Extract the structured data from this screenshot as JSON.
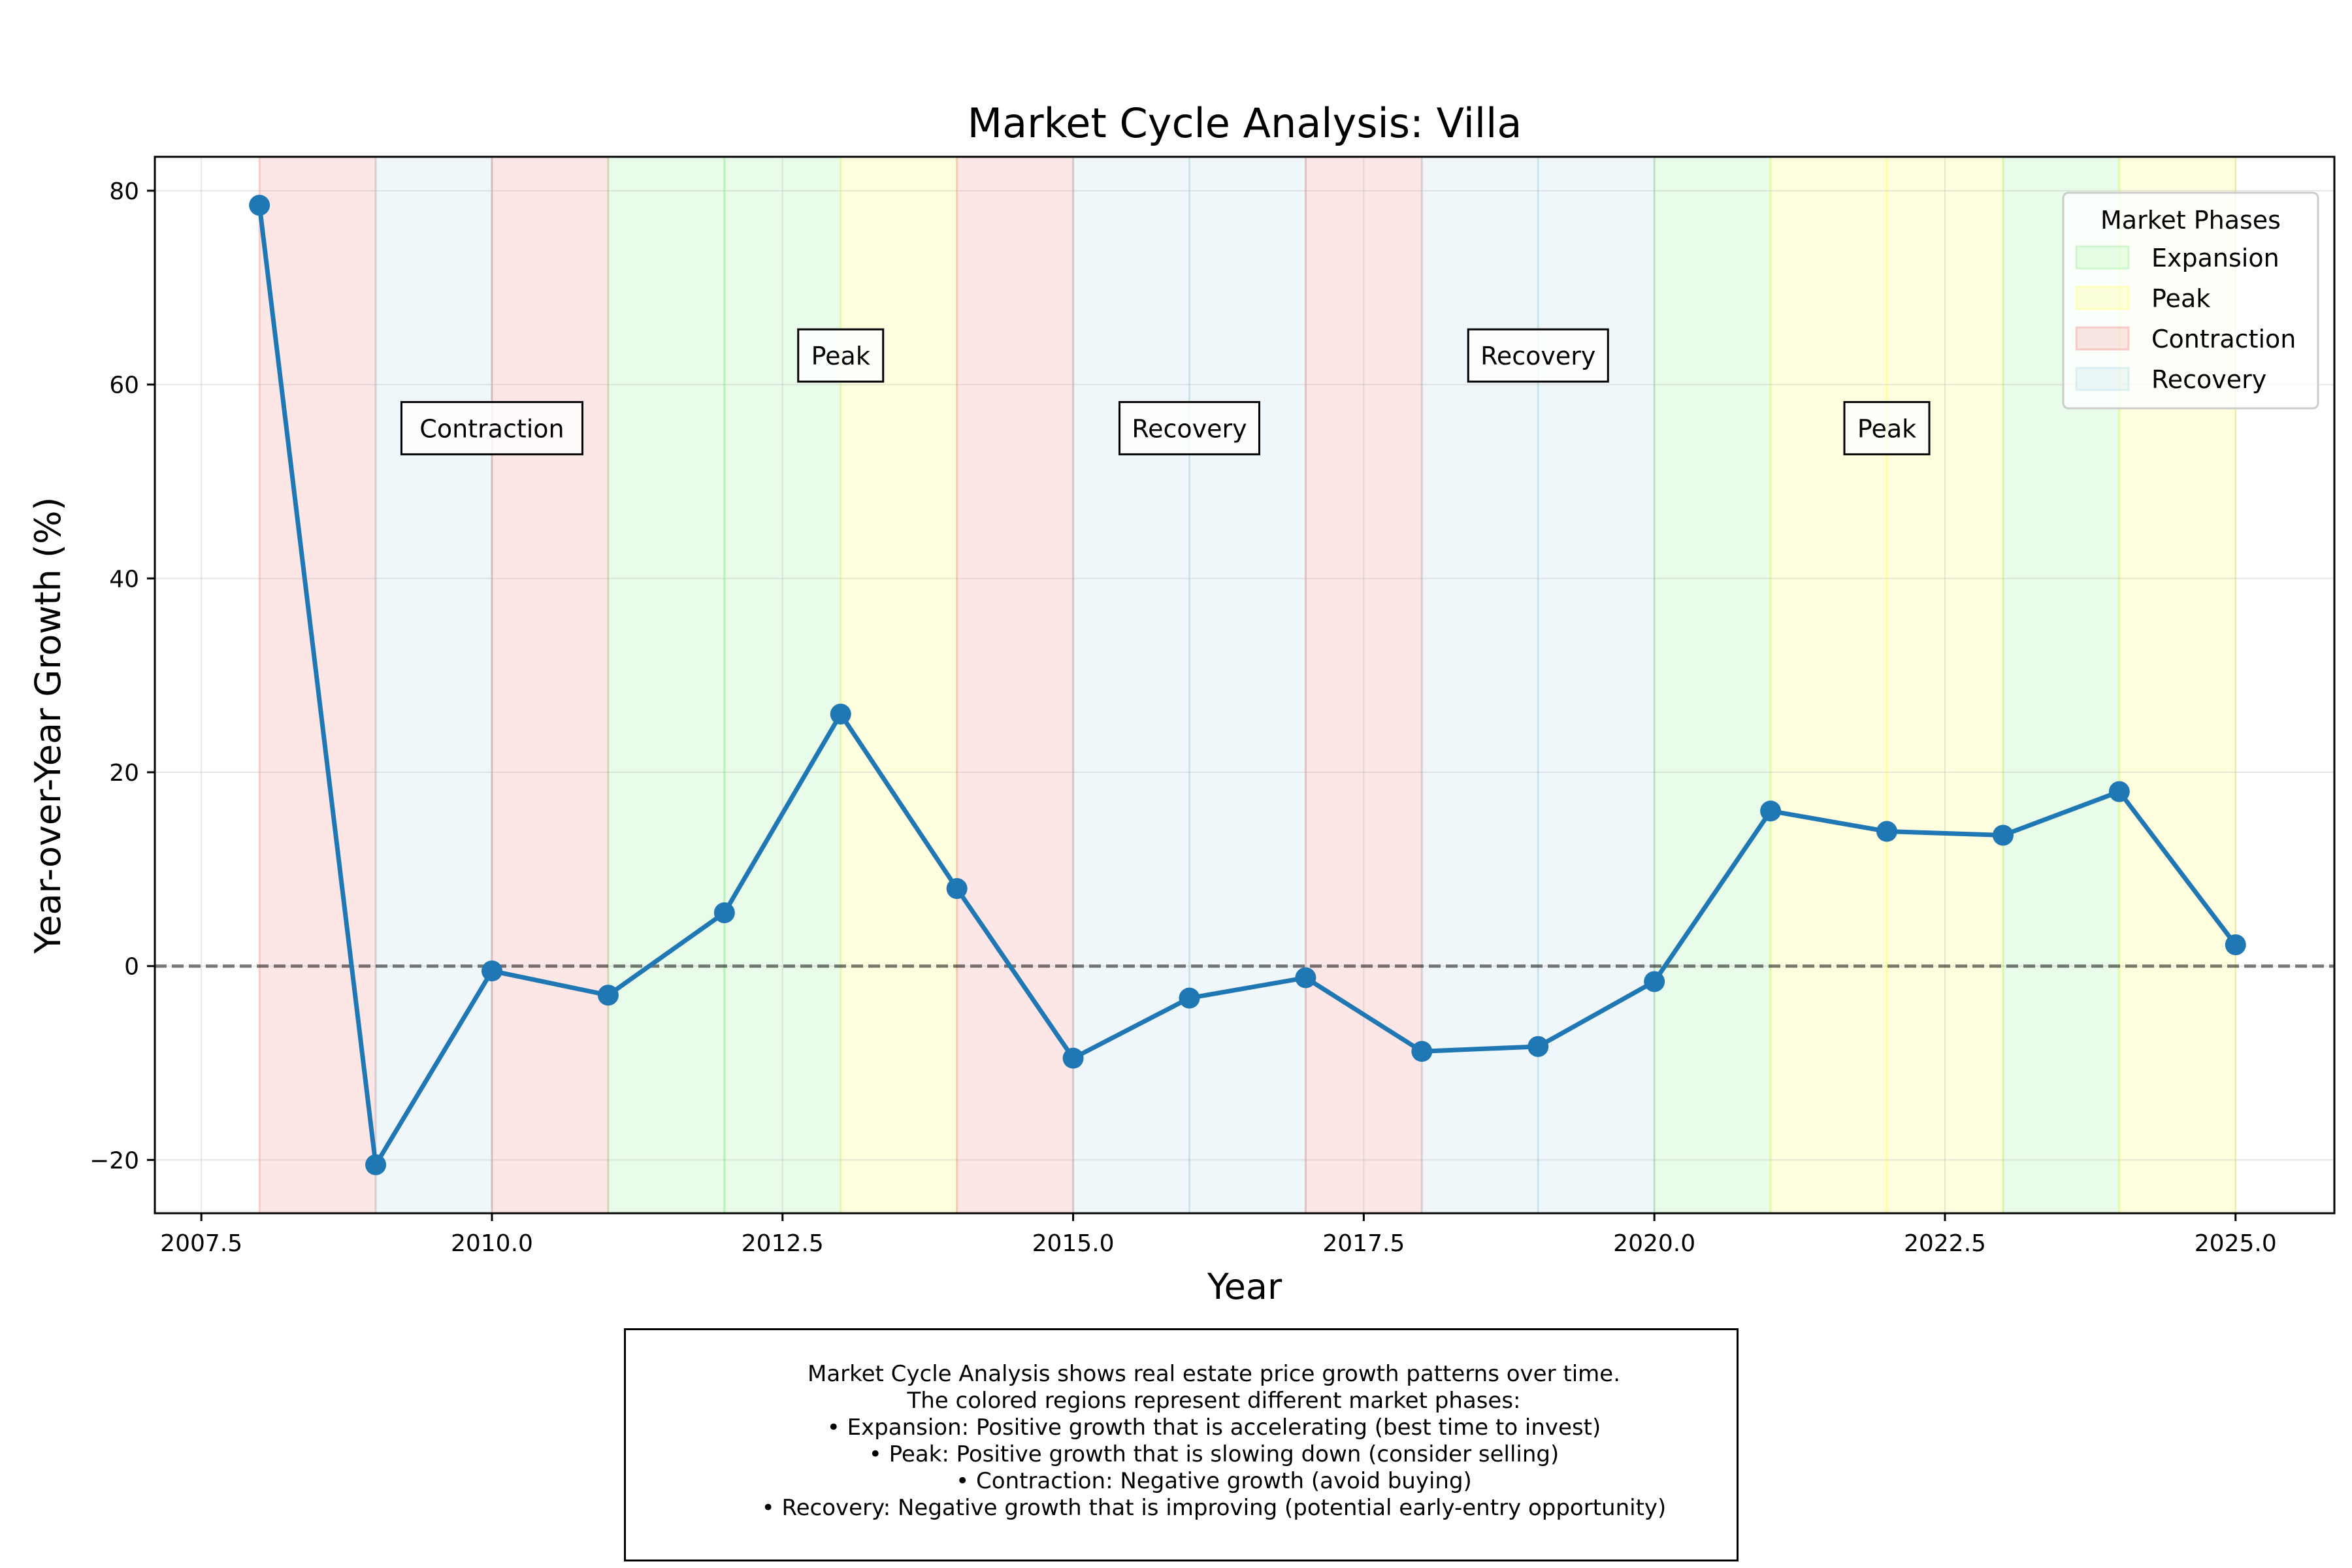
{
  "chart_data": {
    "type": "line",
    "title": "Market Cycle Analysis: Villa",
    "xlabel": "Year",
    "ylabel": "Year-over-Year Growth (%)",
    "xlim": [
      2007.1,
      2025.85
    ],
    "ylim": [
      -25.5,
      83.5
    ],
    "xticks": [
      2007.5,
      2010.0,
      2012.5,
      2015.0,
      2017.5,
      2020.0,
      2022.5,
      2025.0
    ],
    "xtick_labels": [
      "2007.5",
      "2010.0",
      "2012.5",
      "2015.0",
      "2017.5",
      "2020.0",
      "2022.5",
      "2025.0"
    ],
    "yticks": [
      -20,
      0,
      20,
      40,
      60,
      80
    ],
    "ytick_labels": [
      "−20",
      "0",
      "20",
      "40",
      "60",
      "80"
    ],
    "grid": true,
    "reference_line": 0,
    "series": [
      {
        "x": [
          2008,
          2009,
          2010,
          2011,
          2012,
          2013,
          2014,
          2015,
          2016,
          2017,
          2018,
          2019,
          2020,
          2021,
          2022,
          2023,
          2024,
          2025
        ],
        "values": [
          78.5,
          -20.5,
          -0.5,
          -3.0,
          5.5,
          26.0,
          8.0,
          -9.5,
          -3.3,
          -1.2,
          -8.8,
          -8.3,
          -1.6,
          16.0,
          13.9,
          13.5,
          18.0,
          2.2
        ],
        "color": "#1f77b4"
      }
    ],
    "phase_colors": {
      "Expansion": "#90ee90",
      "Peak": "#ffff66",
      "Contraction": "#f08080",
      "Recovery": "#add8e6"
    },
    "phases": [
      {
        "start": 2008,
        "end": 2009,
        "phase": "Contraction"
      },
      {
        "start": 2009,
        "end": 2010,
        "phase": "Recovery"
      },
      {
        "start": 2010,
        "end": 2011,
        "phase": "Contraction"
      },
      {
        "start": 2011,
        "end": 2012,
        "phase": "Expansion"
      },
      {
        "start": 2012,
        "end": 2013,
        "phase": "Expansion"
      },
      {
        "start": 2013,
        "end": 2014,
        "phase": "Peak"
      },
      {
        "start": 2014,
        "end": 2015,
        "phase": "Contraction"
      },
      {
        "start": 2015,
        "end": 2016,
        "phase": "Recovery"
      },
      {
        "start": 2016,
        "end": 2017,
        "phase": "Recovery"
      },
      {
        "start": 2017,
        "end": 2018,
        "phase": "Contraction"
      },
      {
        "start": 2018,
        "end": 2019,
        "phase": "Recovery"
      },
      {
        "start": 2019,
        "end": 2020,
        "phase": "Recovery"
      },
      {
        "start": 2020,
        "end": 2021,
        "phase": "Expansion"
      },
      {
        "start": 2021,
        "end": 2022,
        "phase": "Peak"
      },
      {
        "start": 2022,
        "end": 2023,
        "phase": "Peak"
      },
      {
        "start": 2023,
        "end": 2024,
        "phase": "Expansion"
      },
      {
        "start": 2024,
        "end": 2025,
        "phase": "Peak"
      }
    ],
    "annotations": [
      {
        "text": "Contraction",
        "x": 2010.0,
        "y": 55.5
      },
      {
        "text": "Peak",
        "x": 2013.0,
        "y": 63.0
      },
      {
        "text": "Recovery",
        "x": 2016.0,
        "y": 55.5
      },
      {
        "text": "Recovery",
        "x": 2019.0,
        "y": 63.0
      },
      {
        "text": "Peak",
        "x": 2022.0,
        "y": 55.5
      }
    ],
    "legend": {
      "title": "Market Phases",
      "placement": "top-right",
      "entries": [
        "Expansion",
        "Peak",
        "Contraction",
        "Recovery"
      ]
    }
  },
  "description": {
    "lines": [
      "Market Cycle Analysis shows real estate price growth patterns over time.",
      "The colored regions represent different market phases:",
      "• Expansion: Positive growth that is accelerating (best time to invest)",
      "• Peak: Positive growth that is slowing down (consider selling)",
      "• Contraction: Negative growth (avoid buying)",
      "• Recovery: Negative growth that is improving (potential early-entry opportunity)"
    ]
  }
}
